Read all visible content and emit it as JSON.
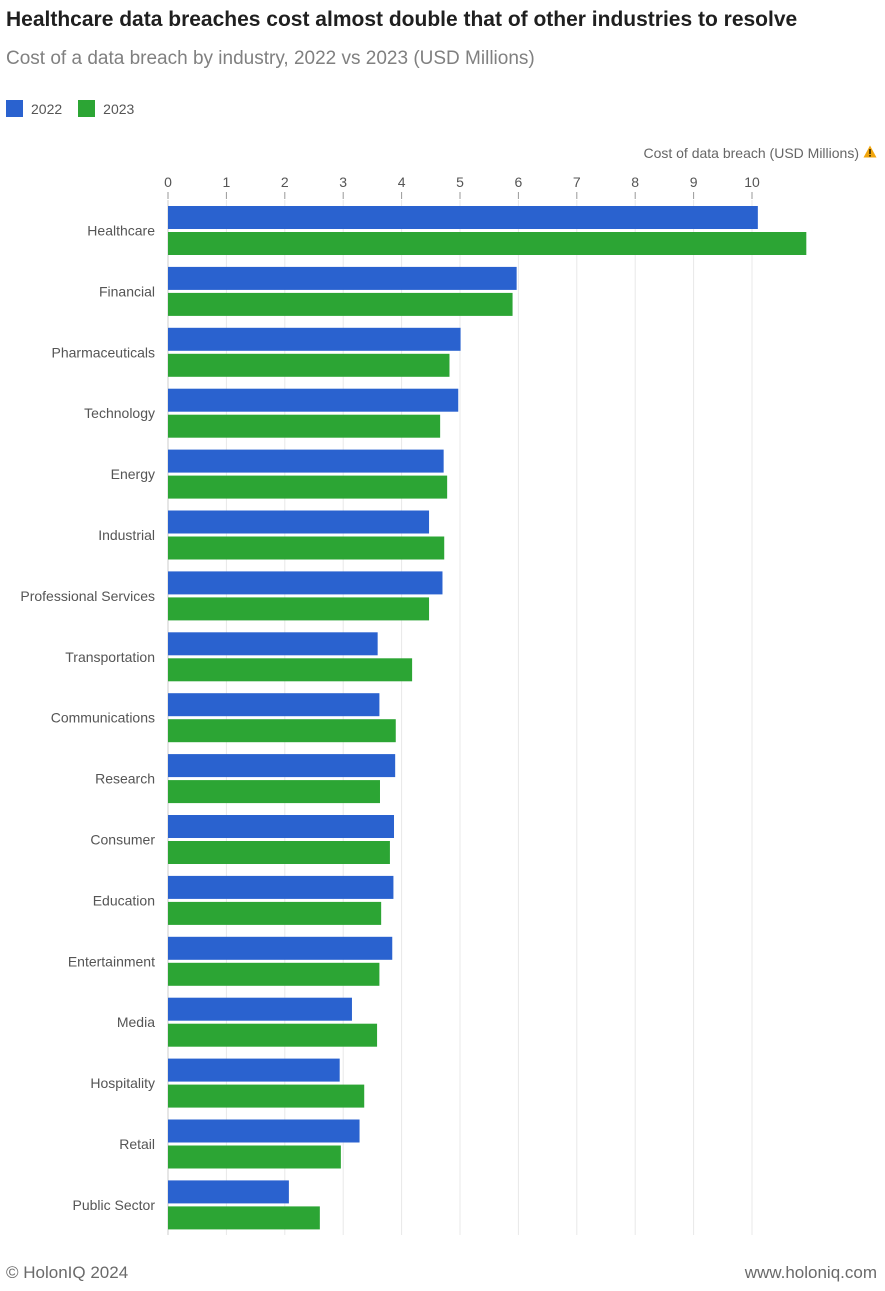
{
  "header": {
    "title": "Healthcare data breaches cost almost double that of other industries to resolve",
    "subtitle": "Cost of a data breach by industry, 2022 vs 2023 (USD Millions)"
  },
  "legend": {
    "items": [
      {
        "label": "2022",
        "color": "#2a62cf"
      },
      {
        "label": "2023",
        "color": "#2ca534"
      }
    ]
  },
  "axis_caption": "Cost of data breach (USD Millions)",
  "footer": {
    "left": "© HolonIQ 2024",
    "right": "www.holoniq.com"
  },
  "chart_data": {
    "type": "bar",
    "orientation": "horizontal",
    "title": "Healthcare data breaches cost almost double that of other industries to resolve",
    "subtitle": "Cost of a data breach by industry, 2022 vs 2023 (USD Millions)",
    "xlabel": "Cost of data breach (USD Millions)",
    "ylabel": "",
    "xlim": [
      0,
      11
    ],
    "ticks": [
      0,
      1,
      2,
      3,
      4,
      5,
      6,
      7,
      8,
      9,
      10
    ],
    "grid": true,
    "legend_position": "top-left",
    "categories": [
      "Healthcare",
      "Financial",
      "Pharmaceuticals",
      "Technology",
      "Energy",
      "Industrial",
      "Professional Services",
      "Transportation",
      "Communications",
      "Research",
      "Consumer",
      "Education",
      "Entertainment",
      "Media",
      "Hospitality",
      "Retail",
      "Public Sector"
    ],
    "series": [
      {
        "name": "2022",
        "color": "#2a62cf",
        "values": [
          10.1,
          5.97,
          5.01,
          4.97,
          4.72,
          4.47,
          4.7,
          3.59,
          3.62,
          3.89,
          3.87,
          3.86,
          3.84,
          3.15,
          2.94,
          3.28,
          2.07
        ]
      },
      {
        "name": "2023",
        "color": "#2ca534",
        "values": [
          10.93,
          5.9,
          4.82,
          4.66,
          4.78,
          4.73,
          4.47,
          4.18,
          3.9,
          3.63,
          3.8,
          3.65,
          3.62,
          3.58,
          3.36,
          2.96,
          2.6
        ]
      }
    ]
  }
}
